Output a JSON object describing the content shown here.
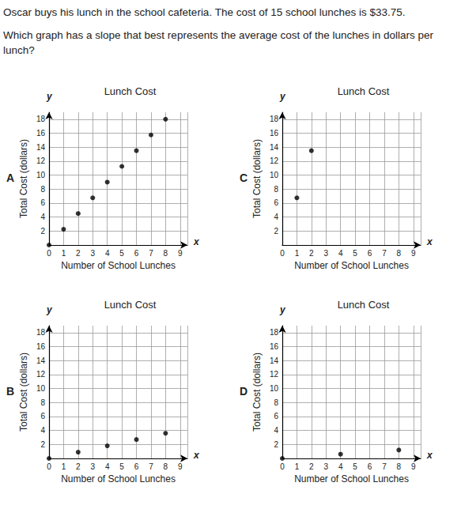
{
  "question": {
    "text": [
      "Oscar buys his lunch in the school cafeteria. The cost of 15 school lunches is $33.75.",
      "Which graph has a slope that best represents the average cost of the lunches in dollars per lunch?"
    ]
  },
  "chart_data": [
    {
      "type": "scatter",
      "panel": "A",
      "title": "Lunch Cost",
      "xlabel": "Number of School Lunches",
      "ylabel": "Total Cost (dollars)",
      "x_variable": "x",
      "y_variable": "y",
      "x": [
        0,
        1,
        2,
        3,
        4,
        5,
        6,
        7,
        8
      ],
      "values": [
        0,
        2.25,
        4.5,
        6.75,
        9,
        11.25,
        13.5,
        15.75,
        18
      ],
      "color": "#000000",
      "marker": "circle",
      "grid": true,
      "xlim": [
        0,
        9.5
      ],
      "xticks": [
        0,
        1,
        2,
        3,
        4,
        5,
        6,
        7,
        8,
        9
      ],
      "ylim": [
        0,
        19
      ],
      "yticks": [
        2,
        4,
        6,
        8,
        10,
        12,
        14,
        16,
        18
      ]
    },
    {
      "type": "scatter",
      "panel": "C",
      "title": "Lunch Cost",
      "xlabel": "Number of School Lunches",
      "ylabel": "Total Cost (dollars)",
      "x_variable": "x",
      "y_variable": "y",
      "x": [
        1,
        2
      ],
      "values": [
        6.75,
        13.5
      ],
      "color": "#000000",
      "marker": "circle",
      "grid": true,
      "xlim": [
        0,
        9.5
      ],
      "xticks": [
        0,
        1,
        2,
        3,
        4,
        5,
        6,
        7,
        8,
        9
      ],
      "ylim": [
        0,
        19
      ],
      "yticks": [
        2,
        4,
        6,
        8,
        10,
        12,
        14,
        16,
        18
      ]
    },
    {
      "type": "scatter",
      "panel": "B",
      "title": "Lunch Cost",
      "xlabel": "Number of School Lunches",
      "ylabel": "Total Cost (dollars)",
      "x_variable": "x",
      "y_variable": "y",
      "x": [
        0,
        2,
        4,
        6,
        8
      ],
      "values": [
        0,
        0.9,
        1.8,
        2.7,
        3.6
      ],
      "color": "#000000",
      "marker": "circle",
      "grid": true,
      "xlim": [
        0,
        9.5
      ],
      "xticks": [
        0,
        1,
        2,
        3,
        4,
        5,
        6,
        7,
        8,
        9
      ],
      "ylim": [
        0,
        19
      ],
      "yticks": [
        2,
        4,
        6,
        8,
        10,
        12,
        14,
        16,
        18
      ]
    },
    {
      "type": "scatter",
      "panel": "D",
      "title": "Lunch Cost",
      "xlabel": "Number of School Lunches",
      "ylabel": "Total Cost (dollars)",
      "x_variable": "x",
      "y_variable": "y",
      "x": [
        0,
        4,
        8
      ],
      "values": [
        0,
        0.6,
        1.2
      ],
      "color": "#000000",
      "marker": "circle",
      "grid": true,
      "xlim": [
        0,
        9.5
      ],
      "xticks": [
        0,
        1,
        2,
        3,
        4,
        5,
        6,
        7,
        8,
        9
      ],
      "ylim": [
        0,
        19
      ],
      "yticks": [
        2,
        4,
        6,
        8,
        10,
        12,
        14,
        16,
        18
      ]
    }
  ]
}
